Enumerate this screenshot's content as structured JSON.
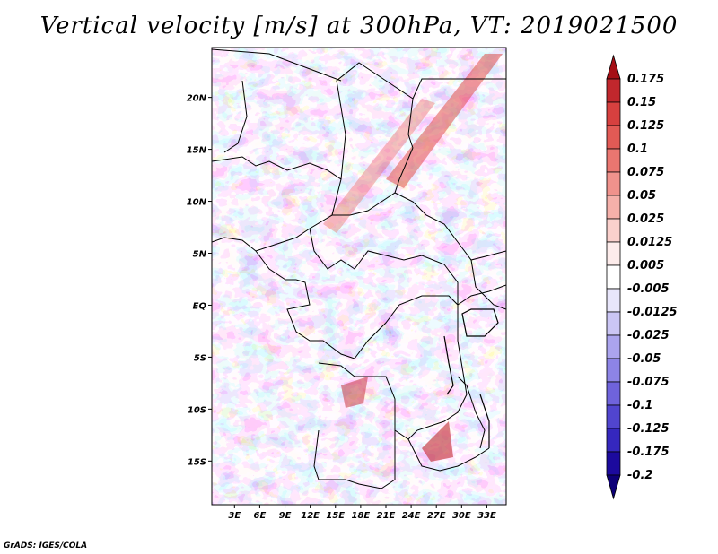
{
  "title": "Vertical velocity [m/s] at 300hPa, VT: 2019021500",
  "credit": "GrADS: IGES/COLA",
  "map": {
    "lat_ticks": [
      "20N",
      "15N",
      "10N",
      "5N",
      "EQ",
      "5S",
      "10S",
      "15S"
    ],
    "lon_ticks": [
      "3E",
      "6E",
      "9E",
      "12E",
      "15E",
      "18E",
      "21E",
      "24E",
      "27E",
      "30E",
      "33E"
    ],
    "lat_values": [
      20,
      15,
      10,
      5,
      0,
      -5,
      -10,
      -15
    ],
    "lon_values": [
      3,
      6,
      9,
      12,
      15,
      18,
      21,
      24,
      27,
      30,
      33
    ],
    "extent": {
      "lon_min": 0.3,
      "lon_max": 35.3,
      "lat_min": -19.2,
      "lat_max": 24.8
    }
  },
  "colorbar": {
    "labels": [
      "0.175",
      "0.15",
      "0.125",
      "0.1",
      "0.075",
      "0.05",
      "0.025",
      "0.0125",
      "0.005",
      "-0.005",
      "-0.0125",
      "-0.025",
      "-0.05",
      "-0.075",
      "-0.1",
      "-0.125",
      "-0.175",
      "-0.2"
    ],
    "colors": [
      "#a50f15",
      "#c1272d",
      "#d7403f",
      "#e25a55",
      "#ea7670",
      "#f0928c",
      "#f5b0aa",
      "#fad0cc",
      "#fdeceb",
      "#ffffff",
      "#e8e6fb",
      "#cbc6f5",
      "#aba4ee",
      "#8d84e6",
      "#6f63dc",
      "#5145cf",
      "#3527be",
      "#1c0a9e",
      "#0d0078"
    ]
  },
  "colors": {
    "frame": "#000000",
    "border": "#000000"
  }
}
